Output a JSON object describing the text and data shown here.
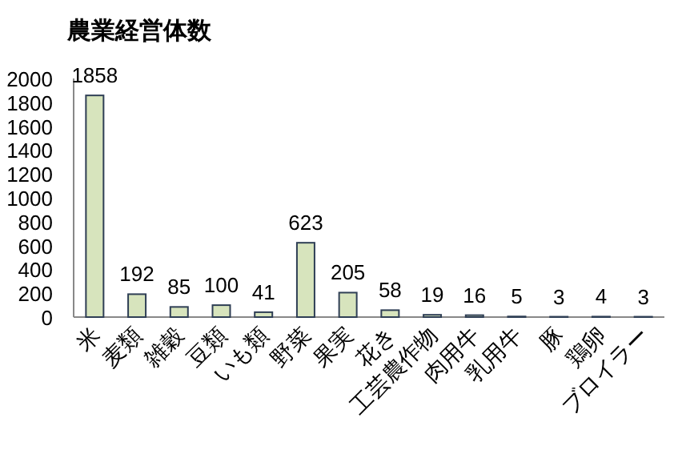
{
  "chart_data": {
    "type": "bar",
    "title": "農業経営体数",
    "categories": [
      "米",
      "麦類",
      "雑穀",
      "豆類",
      "いも類",
      "野菜",
      "果実",
      "花き",
      "工芸農作物",
      "肉用牛",
      "乳用牛",
      "豚",
      "鶏卵",
      "ブロイラー"
    ],
    "values": [
      1858,
      192,
      85,
      100,
      41,
      623,
      205,
      58,
      19,
      16,
      5,
      3,
      4,
      3
    ],
    "color": "#d7e4bd",
    "ylim": [
      0,
      2000
    ],
    "yticks": [
      0,
      200,
      400,
      600,
      800,
      1000,
      1200,
      1400,
      1600,
      1800,
      2000
    ],
    "data_labels": true,
    "grid": false
  }
}
